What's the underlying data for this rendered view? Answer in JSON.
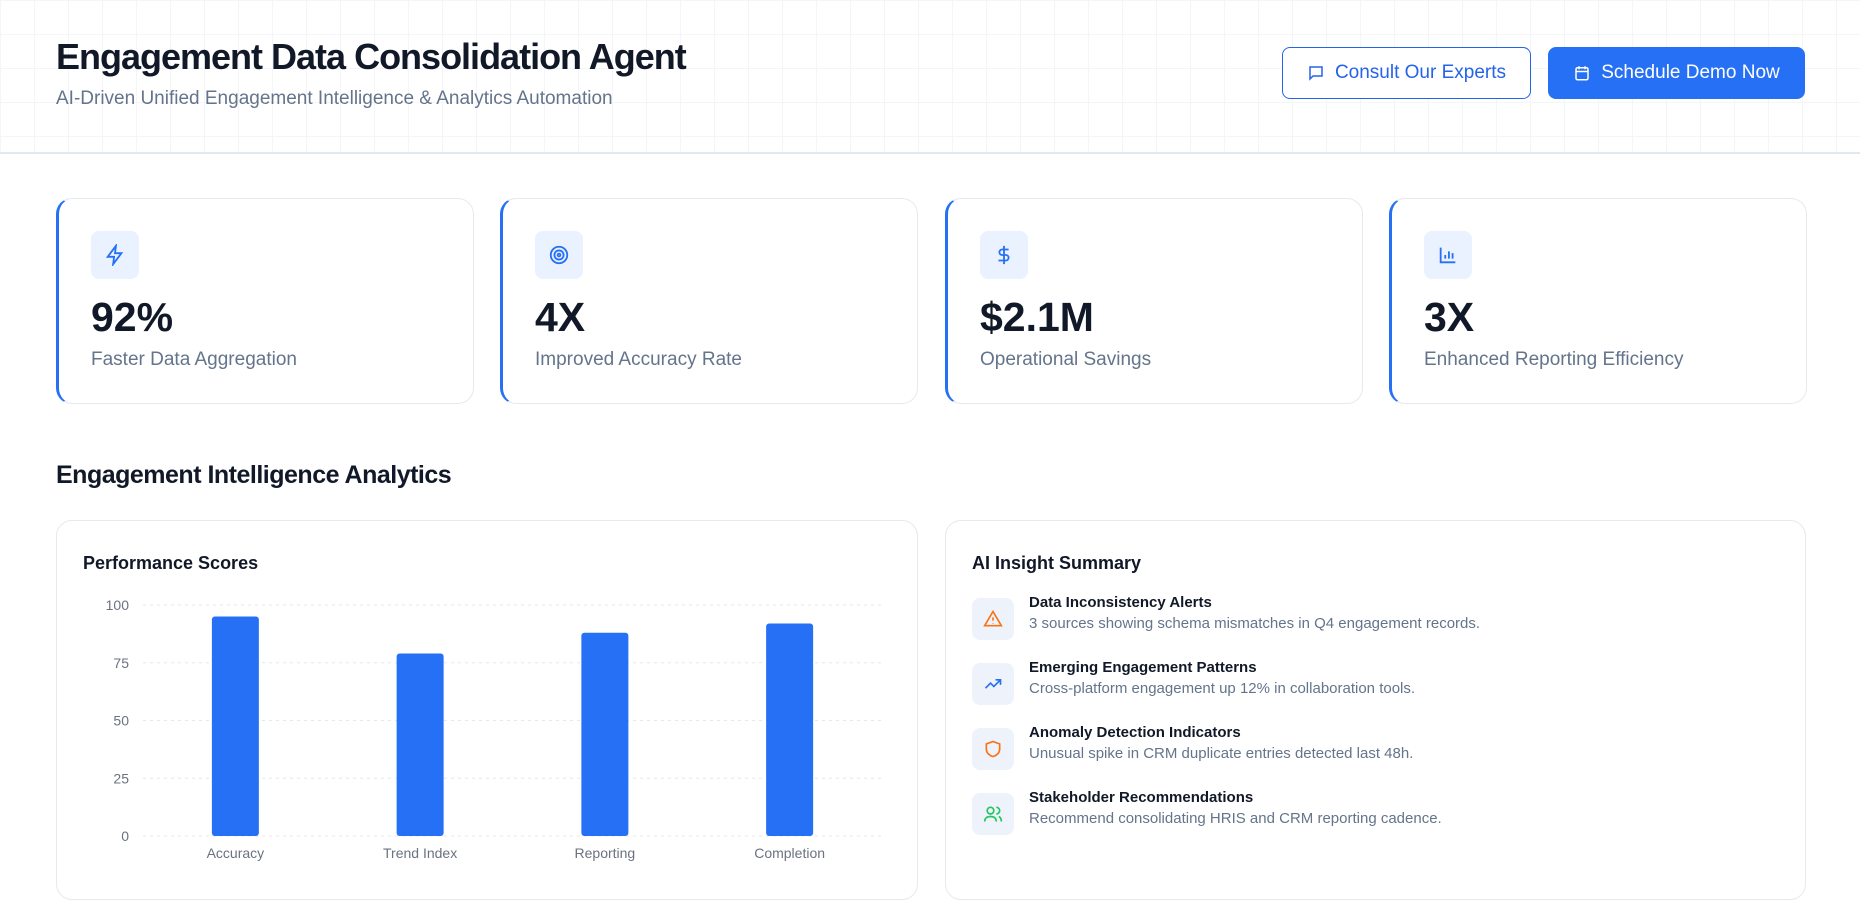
{
  "header": {
    "title": "Engagement Data Consolidation Agent",
    "subtitle": "AI-Driven Unified Engagement Intelligence & Analytics Automation",
    "consult_label": "Consult Our Experts",
    "schedule_label": "Schedule Demo Now"
  },
  "colors": {
    "accent": "#2670f5",
    "warning": "#f97316",
    "success": "#22c55e"
  },
  "stats": [
    {
      "icon": "lightning-icon",
      "value": "92%",
      "label": "Faster Data Aggregation"
    },
    {
      "icon": "target-icon",
      "value": "4X",
      "label": "Improved Accuracy Rate"
    },
    {
      "icon": "dollar-icon",
      "value": "$2.1M",
      "label": "Operational Savings"
    },
    {
      "icon": "bar-chart-icon",
      "value": "3X",
      "label": "Enhanced Reporting Efficiency"
    }
  ],
  "section_title": "Engagement Intelligence Analytics",
  "chart_data": {
    "type": "bar",
    "title": "Performance Scores",
    "categories": [
      "Accuracy",
      "Trend Index",
      "Reporting",
      "Completion"
    ],
    "values": [
      95,
      79,
      88,
      92
    ],
    "ylim": [
      0,
      100
    ],
    "yticks": [
      0,
      25,
      50,
      75,
      100
    ],
    "grid": true,
    "color": "#2670f5"
  },
  "insights": {
    "title": "AI Insight Summary",
    "items": [
      {
        "icon": "warning-icon",
        "title": "Data Inconsistency Alerts",
        "desc": "3 sources showing schema mismatches in Q4 engagement records."
      },
      {
        "icon": "trending-up-icon",
        "title": "Emerging Engagement Patterns",
        "desc": "Cross-platform engagement up 12% in collaboration tools."
      },
      {
        "icon": "shield-icon",
        "title": "Anomaly Detection Indicators",
        "desc": "Unusual spike in CRM duplicate entries detected last 48h."
      },
      {
        "icon": "users-icon",
        "title": "Stakeholder Recommendations",
        "desc": "Recommend consolidating HRIS and CRM reporting cadence."
      }
    ]
  }
}
